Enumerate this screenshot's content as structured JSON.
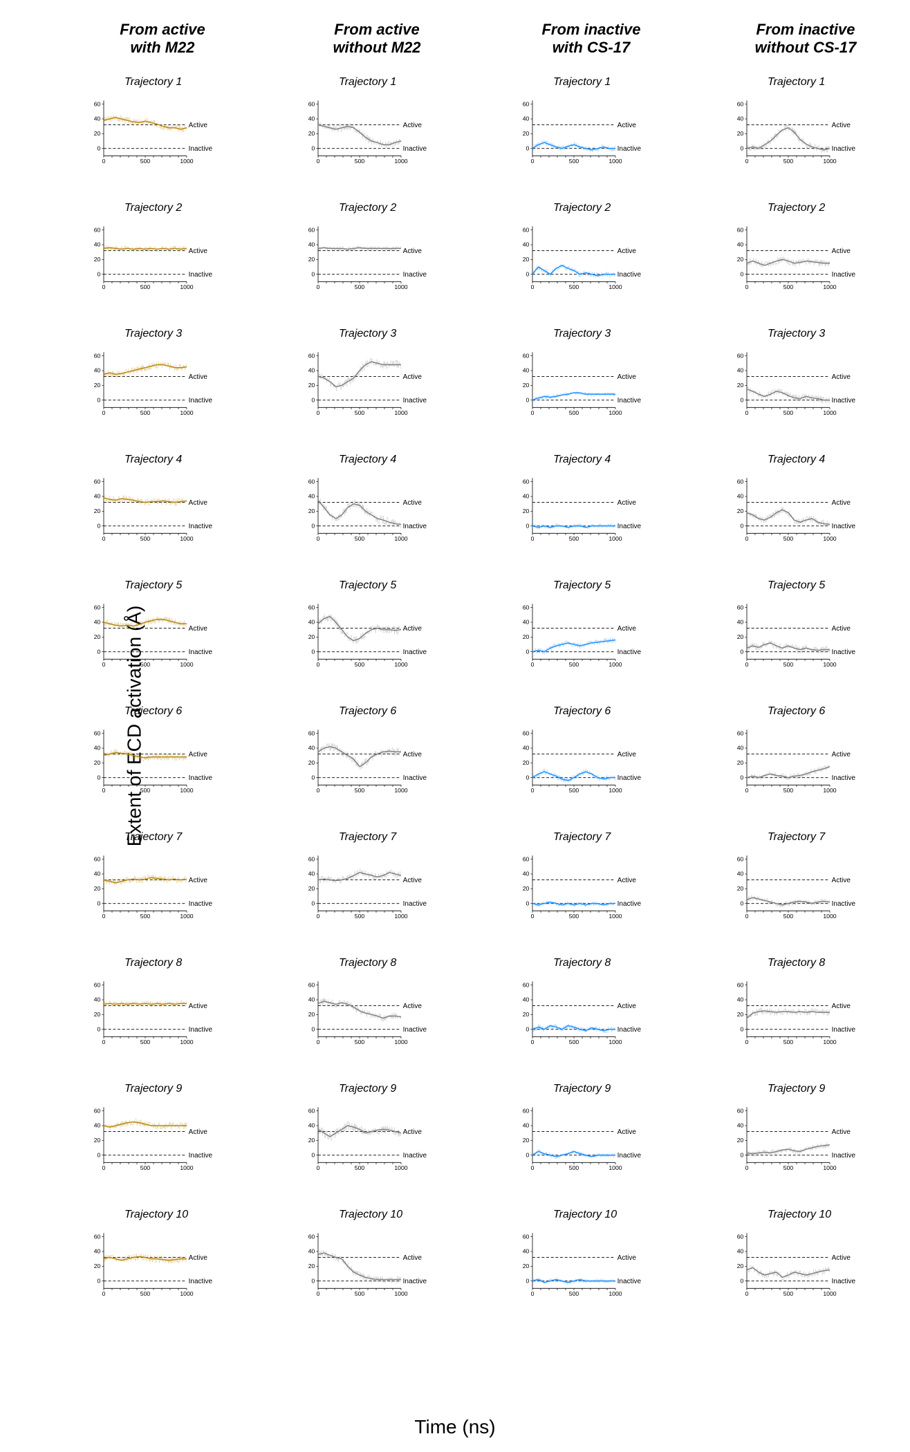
{
  "figure": {
    "y_axis_label": "Extent of ECD activation (Å)",
    "x_axis_label": "Time (ns)",
    "xlim": [
      0,
      1000
    ],
    "ylim": [
      -10,
      65
    ],
    "yticks": [
      0,
      20,
      40,
      60
    ],
    "xticks": [
      0,
      500,
      1000
    ],
    "ref_active": 32,
    "ref_inactive": 0,
    "ref_active_label": "Active",
    "ref_inactive_label": "Inactive",
    "traj_label_prefix": "Trajectory",
    "colors": {
      "col1": "#b8860b",
      "col2": "#808080",
      "col3": "#1e90ff",
      "col4": "#808080",
      "noise_alpha": 0.35,
      "axis": "#000000",
      "background": "#ffffff"
    },
    "fonts": {
      "header_size": 22,
      "traj_size": 16,
      "tick_size": 13,
      "ref_size": 15,
      "axis_label_size": 28
    },
    "columns": [
      {
        "title_line1": "From active",
        "title_line2": "with M22",
        "color": "#b8860b",
        "trajectories": [
          {
            "smooth": [
              38,
              40,
              42,
              40,
              38,
              36,
              35,
              37,
              35,
              33,
              30,
              28,
              28,
              26,
              28
            ],
            "noise_amp": 5
          },
          {
            "smooth": [
              35,
              36,
              35,
              34,
              35,
              34,
              35,
              34,
              35,
              34,
              35,
              34,
              35,
              34,
              35
            ],
            "noise_amp": 4
          },
          {
            "smooth": [
              35,
              37,
              35,
              36,
              38,
              40,
              42,
              44,
              46,
              48,
              48,
              46,
              44,
              44,
              45
            ],
            "noise_amp": 5
          },
          {
            "smooth": [
              38,
              36,
              35,
              37,
              36,
              35,
              33,
              32,
              33,
              33,
              34,
              33,
              32,
              33,
              34
            ],
            "noise_amp": 5
          },
          {
            "smooth": [
              40,
              38,
              36,
              35,
              36,
              35,
              37,
              40,
              42,
              44,
              44,
              42,
              40,
              38,
              38
            ],
            "noise_amp": 5
          },
          {
            "smooth": [
              30,
              32,
              34,
              33,
              32,
              30,
              28,
              27,
              28,
              28,
              28,
              28,
              28,
              28,
              28
            ],
            "noise_amp": 5
          },
          {
            "smooth": [
              32,
              30,
              28,
              30,
              32,
              33,
              32,
              33,
              35,
              34,
              33,
              32,
              33,
              32,
              33
            ],
            "noise_amp": 5
          },
          {
            "smooth": [
              34,
              35,
              34,
              35,
              34,
              35,
              34,
              35,
              34,
              35,
              34,
              35,
              34,
              35,
              35
            ],
            "noise_amp": 4
          },
          {
            "smooth": [
              40,
              38,
              40,
              42,
              44,
              45,
              44,
              42,
              40,
              40,
              40,
              40,
              40,
              40,
              40
            ],
            "noise_amp": 5
          },
          {
            "smooth": [
              30,
              32,
              30,
              28,
              30,
              32,
              33,
              32,
              30,
              30,
              29,
              28,
              29,
              30,
              30
            ],
            "noise_amp": 5
          }
        ]
      },
      {
        "title_line1": "From active",
        "title_line2": "without M22",
        "color": "#808080",
        "trajectories": [
          {
            "smooth": [
              32,
              30,
              28,
              26,
              28,
              30,
              28,
              22,
              15,
              10,
              8,
              5,
              5,
              8,
              10
            ],
            "noise_amp": 5
          },
          {
            "smooth": [
              35,
              36,
              35,
              35,
              35,
              34,
              35,
              36,
              35,
              35,
              35,
              35,
              35,
              35,
              35
            ],
            "noise_amp": 3
          },
          {
            "smooth": [
              32,
              30,
              25,
              18,
              20,
              25,
              30,
              40,
              48,
              52,
              50,
              48,
              48,
              48,
              48
            ],
            "noise_amp": 6
          },
          {
            "smooth": [
              35,
              25,
              15,
              10,
              15,
              25,
              30,
              28,
              20,
              15,
              10,
              8,
              5,
              3,
              2
            ],
            "noise_amp": 6
          },
          {
            "smooth": [
              38,
              45,
              48,
              40,
              30,
              20,
              15,
              18,
              25,
              30,
              32,
              30,
              30,
              29,
              30
            ],
            "noise_amp": 6
          },
          {
            "smooth": [
              35,
              40,
              42,
              40,
              35,
              30,
              25,
              15,
              20,
              28,
              32,
              35,
              36,
              35,
              35
            ],
            "noise_amp": 6
          },
          {
            "smooth": [
              32,
              33,
              32,
              31,
              32,
              34,
              38,
              42,
              40,
              38,
              36,
              38,
              42,
              40,
              38
            ],
            "noise_amp": 5
          },
          {
            "smooth": [
              35,
              38,
              36,
              34,
              36,
              34,
              30,
              25,
              22,
              20,
              18,
              15,
              18,
              18,
              17
            ],
            "noise_amp": 5
          },
          {
            "smooth": [
              35,
              30,
              25,
              30,
              35,
              40,
              38,
              35,
              30,
              32,
              34,
              35,
              34,
              32,
              30
            ],
            "noise_amp": 6
          },
          {
            "smooth": [
              36,
              38,
              35,
              32,
              30,
              20,
              12,
              8,
              5,
              3,
              2,
              2,
              2,
              2,
              2
            ],
            "noise_amp": 5
          }
        ]
      },
      {
        "title_line1": "From inactive",
        "title_line2": "with CS-17",
        "color": "#1e90ff",
        "trajectories": [
          {
            "smooth": [
              0,
              5,
              8,
              5,
              2,
              0,
              3,
              5,
              2,
              0,
              -2,
              0,
              2,
              0,
              0
            ],
            "noise_amp": 4
          },
          {
            "smooth": [
              0,
              10,
              5,
              0,
              8,
              12,
              8,
              5,
              0,
              2,
              0,
              -2,
              0,
              0,
              0
            ],
            "noise_amp": 4
          },
          {
            "smooth": [
              0,
              3,
              5,
              4,
              5,
              7,
              8,
              10,
              10,
              8,
              8,
              8,
              8,
              8,
              8
            ],
            "noise_amp": 3
          },
          {
            "smooth": [
              0,
              -2,
              0,
              -2,
              0,
              0,
              -2,
              0,
              0,
              -2,
              0,
              0,
              0,
              0,
              0
            ],
            "noise_amp": 3
          },
          {
            "smooth": [
              0,
              2,
              0,
              5,
              8,
              10,
              12,
              10,
              8,
              10,
              12,
              13,
              14,
              15,
              16
            ],
            "noise_amp": 4
          },
          {
            "smooth": [
              0,
              5,
              8,
              5,
              2,
              -2,
              -4,
              0,
              5,
              8,
              5,
              0,
              -2,
              0,
              0
            ],
            "noise_amp": 4
          },
          {
            "smooth": [
              0,
              -2,
              0,
              2,
              0,
              -2,
              0,
              -2,
              0,
              -2,
              0,
              0,
              -2,
              0,
              0
            ],
            "noise_amp": 3
          },
          {
            "smooth": [
              0,
              3,
              0,
              5,
              3,
              0,
              5,
              3,
              0,
              -2,
              2,
              0,
              -2,
              0,
              0
            ],
            "noise_amp": 4
          },
          {
            "smooth": [
              0,
              5,
              2,
              0,
              -2,
              0,
              2,
              5,
              2,
              0,
              -2,
              0,
              0,
              0,
              0
            ],
            "noise_amp": 3
          },
          {
            "smooth": [
              0,
              2,
              -2,
              0,
              2,
              0,
              -2,
              0,
              2,
              0,
              0,
              0,
              0,
              0,
              0
            ],
            "noise_amp": 3
          }
        ]
      },
      {
        "title_line1": "From inactive",
        "title_line2": "without CS-17",
        "color": "#808080",
        "trajectories": [
          {
            "smooth": [
              0,
              2,
              0,
              5,
              10,
              18,
              25,
              28,
              22,
              12,
              6,
              2,
              0,
              -2,
              0
            ],
            "noise_amp": 5
          },
          {
            "smooth": [
              15,
              18,
              15,
              12,
              15,
              18,
              20,
              18,
              15,
              16,
              18,
              17,
              16,
              15,
              15
            ],
            "noise_amp": 5
          },
          {
            "smooth": [
              15,
              12,
              8,
              5,
              8,
              12,
              10,
              6,
              3,
              2,
              5,
              3,
              2,
              0,
              0
            ],
            "noise_amp": 5
          },
          {
            "smooth": [
              18,
              15,
              10,
              8,
              12,
              18,
              22,
              18,
              8,
              5,
              8,
              10,
              5,
              3,
              2
            ],
            "noise_amp": 5
          },
          {
            "smooth": [
              5,
              8,
              6,
              10,
              12,
              8,
              5,
              8,
              5,
              3,
              5,
              3,
              2,
              3,
              3
            ],
            "noise_amp": 5
          },
          {
            "smooth": [
              0,
              2,
              0,
              3,
              5,
              3,
              2,
              0,
              2,
              3,
              5,
              8,
              10,
              12,
              15
            ],
            "noise_amp": 4
          },
          {
            "smooth": [
              5,
              8,
              6,
              4,
              2,
              0,
              -2,
              0,
              2,
              3,
              2,
              0,
              2,
              3,
              2
            ],
            "noise_amp": 4
          },
          {
            "smooth": [
              15,
              22,
              24,
              25,
              24,
              23,
              24,
              24,
              23,
              24,
              23,
              24,
              23,
              23,
              23
            ],
            "noise_amp": 5
          },
          {
            "smooth": [
              3,
              2,
              3,
              4,
              3,
              5,
              7,
              8,
              6,
              5,
              8,
              10,
              12,
              13,
              14
            ],
            "noise_amp": 4
          },
          {
            "smooth": [
              15,
              18,
              12,
              8,
              10,
              12,
              5,
              8,
              12,
              10,
              8,
              10,
              12,
              14,
              15
            ],
            "noise_amp": 5
          }
        ]
      }
    ]
  }
}
